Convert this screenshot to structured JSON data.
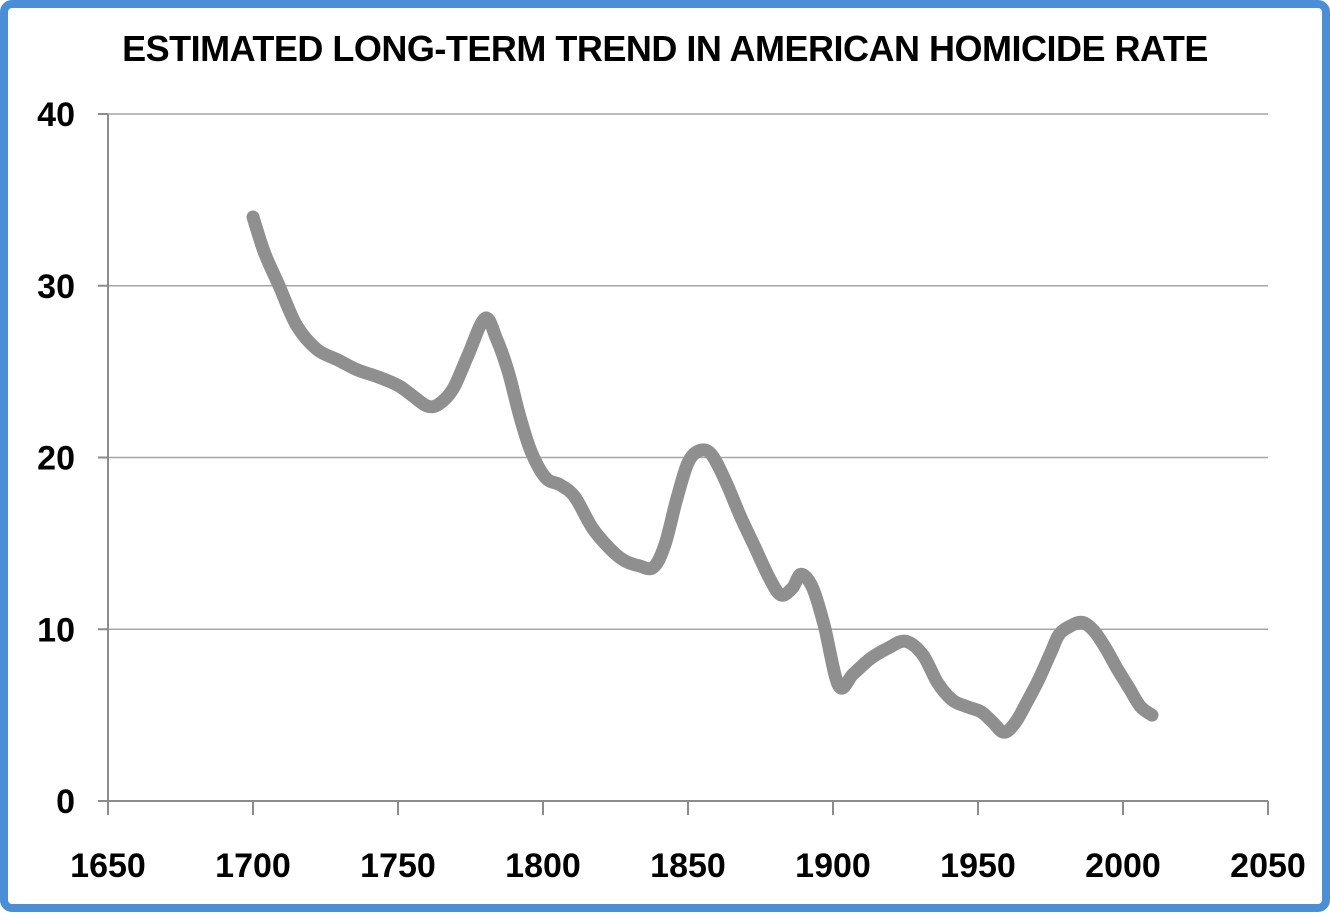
{
  "colors": {
    "frame_border": "#4a8fd5",
    "background": "#ffffff",
    "gridline": "#a6a6a6",
    "axis": "#8c8c8c",
    "text": "#000000",
    "line": "#8f8f8f"
  },
  "chart_data": {
    "type": "line",
    "title": "ESTIMATED LONG-TERM TREND IN AMERICAN HOMICIDE RATE",
    "xlabel": "",
    "ylabel": "",
    "xlim": [
      1650,
      2050
    ],
    "ylim": [
      0,
      40
    ],
    "x_ticks": [
      1650,
      1700,
      1750,
      1800,
      1850,
      1900,
      1950,
      2000,
      2050
    ],
    "x_tick_labels": [
      "1650",
      "1700",
      "1750",
      "1800",
      "1850",
      "1900",
      "1950",
      "2000",
      "2050"
    ],
    "y_ticks": [
      0,
      10,
      20,
      30,
      40
    ],
    "y_tick_labels": [
      "0",
      "10",
      "20",
      "30",
      "40"
    ],
    "grid": "horizontal",
    "legend": "none",
    "series": [
      {
        "name": "homicide-rate-trend",
        "color": "#8f8f8f",
        "stroke_width": 13,
        "smooth": true,
        "points": [
          [
            1700,
            34.0
          ],
          [
            1704,
            31.9
          ],
          [
            1709,
            30.0
          ],
          [
            1715,
            27.7
          ],
          [
            1722,
            26.3
          ],
          [
            1729,
            25.7
          ],
          [
            1736,
            25.1
          ],
          [
            1743,
            24.7
          ],
          [
            1750,
            24.2
          ],
          [
            1755,
            23.6
          ],
          [
            1760,
            23.0
          ],
          [
            1764,
            23.1
          ],
          [
            1769,
            24.0
          ],
          [
            1774,
            25.9
          ],
          [
            1780,
            28.1
          ],
          [
            1784,
            26.9
          ],
          [
            1788,
            25.0
          ],
          [
            1792,
            22.4
          ],
          [
            1796,
            20.3
          ],
          [
            1801,
            18.8
          ],
          [
            1806,
            18.4
          ],
          [
            1811,
            17.7
          ],
          [
            1817,
            15.9
          ],
          [
            1823,
            14.7
          ],
          [
            1828,
            14.0
          ],
          [
            1833,
            13.7
          ],
          [
            1838,
            13.6
          ],
          [
            1842,
            14.9
          ],
          [
            1846,
            17.5
          ],
          [
            1850,
            19.7
          ],
          [
            1854,
            20.4
          ],
          [
            1858,
            20.2
          ],
          [
            1863,
            18.6
          ],
          [
            1868,
            16.6
          ],
          [
            1873,
            14.8
          ],
          [
            1878,
            13.0
          ],
          [
            1882,
            12.0
          ],
          [
            1886,
            12.4
          ],
          [
            1889,
            13.2
          ],
          [
            1893,
            12.4
          ],
          [
            1897,
            10.2
          ],
          [
            1902,
            6.7
          ],
          [
            1907,
            7.4
          ],
          [
            1913,
            8.3
          ],
          [
            1919,
            8.9
          ],
          [
            1925,
            9.3
          ],
          [
            1931,
            8.5
          ],
          [
            1936,
            6.9
          ],
          [
            1941,
            5.9
          ],
          [
            1946,
            5.5
          ],
          [
            1951,
            5.2
          ],
          [
            1955,
            4.6
          ],
          [
            1959,
            4.0
          ],
          [
            1963,
            4.6
          ],
          [
            1967,
            5.8
          ],
          [
            1971,
            7.1
          ],
          [
            1975,
            8.6
          ],
          [
            1978,
            9.7
          ],
          [
            1982,
            10.2
          ],
          [
            1986,
            10.4
          ],
          [
            1990,
            9.9
          ],
          [
            1994,
            8.9
          ],
          [
            1998,
            7.7
          ],
          [
            2002,
            6.6
          ],
          [
            2006,
            5.5
          ],
          [
            2010,
            5.0
          ]
        ]
      }
    ]
  }
}
